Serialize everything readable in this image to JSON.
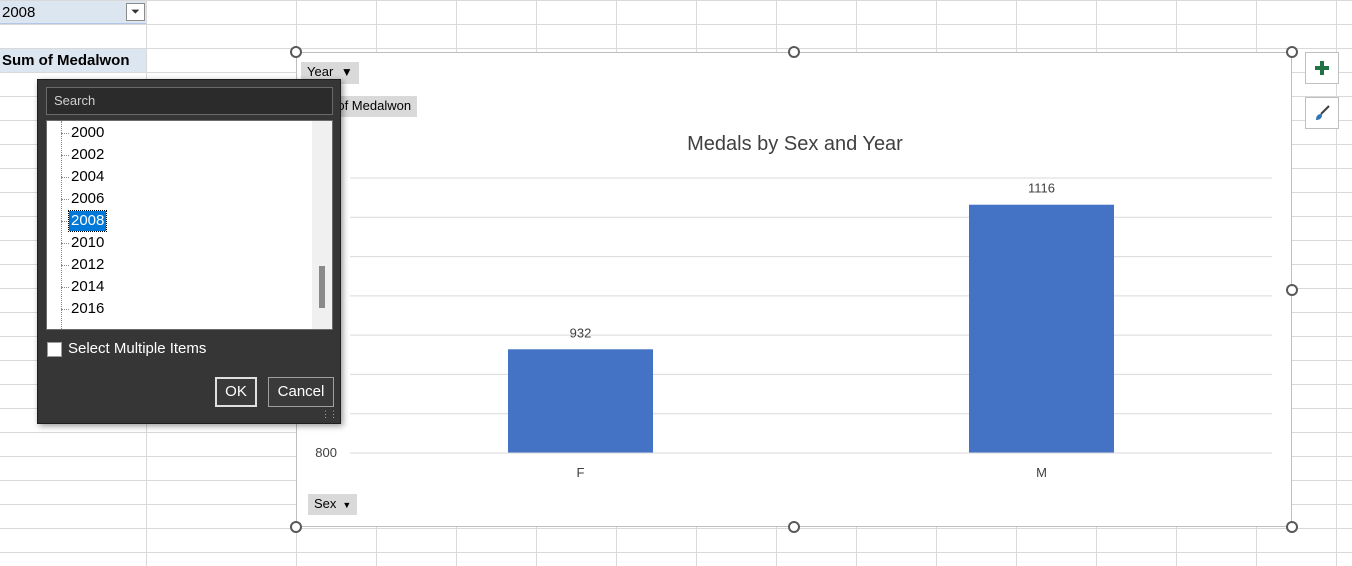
{
  "sheet": {
    "filter_cell_value": "2008",
    "sum_label": "Sum of Medalwon"
  },
  "filter_popup": {
    "search_placeholder": "Search",
    "items": [
      "2000",
      "2002",
      "2004",
      "2006",
      "2008",
      "2010",
      "2012",
      "2014",
      "2016"
    ],
    "selected": "2008",
    "select_multiple_label": "Select Multiple Items",
    "ok_label": "OK",
    "cancel_label": "Cancel"
  },
  "chart": {
    "year_button": "Year",
    "value_button": "Sum of Medalwon",
    "sex_button": "Sex",
    "add_element_icon": "plus-icon",
    "style_icon": "brush-icon"
  },
  "chart_data": {
    "type": "bar",
    "title": "Medals by Sex and Year",
    "categories": [
      "F",
      "M"
    ],
    "values": [
      932,
      1116
    ],
    "ylim": [
      800,
      1150
    ],
    "ytick_shown": "800",
    "data_labels": [
      "932",
      "1116"
    ],
    "grid": true,
    "bar_color": "#4472c4"
  }
}
